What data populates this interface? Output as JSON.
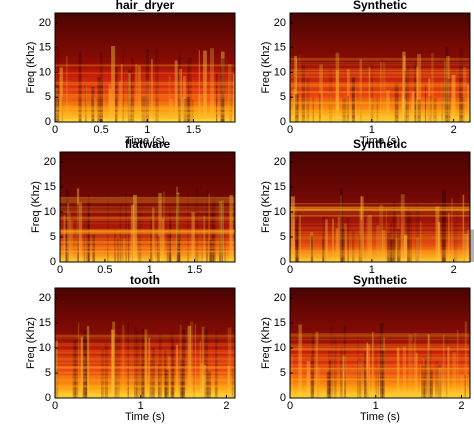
{
  "chart_data": [
    {
      "type": "spectrogram",
      "title": "hair_dryer",
      "xlabel": "Time (s)",
      "ylabel": "Freq (Khz)",
      "xlim": [
        0,
        1.95
      ],
      "xticks": [
        0,
        0.5,
        1,
        1.5
      ],
      "ylim": [
        0,
        22
      ],
      "yticks": [
        0,
        5,
        10,
        15,
        20
      ]
    },
    {
      "type": "spectrogram",
      "title": "Synthetic",
      "xlabel": "Time (s)",
      "ylabel": "Freq (Khz)",
      "xlim": [
        0,
        2.2
      ],
      "xticks": [
        0,
        1,
        2
      ],
      "ylim": [
        0,
        22
      ],
      "yticks": [
        0,
        5,
        10,
        15,
        20
      ]
    },
    {
      "type": "spectrogram",
      "title": "flatware",
      "ylabel": "Freq (Khz)",
      "xlim": [
        0,
        1.95
      ],
      "xticks": [
        0,
        0.5,
        1,
        1.5
      ],
      "ylim": [
        0,
        22
      ],
      "yticks": [
        0,
        5,
        10,
        15,
        20
      ]
    },
    {
      "type": "spectrogram",
      "title": "Synthetic",
      "ylabel": "Freq (Khz)",
      "xlim": [
        0,
        2.2
      ],
      "xticks": [
        0,
        1,
        2
      ],
      "ylim": [
        0,
        22
      ],
      "yticks": [
        0,
        5,
        10,
        15,
        20
      ]
    },
    {
      "type": "spectrogram",
      "title": "tooth",
      "xlabel": "Time (s)",
      "ylabel": "Freq (Khz)",
      "xlim": [
        0,
        2.1
      ],
      "xticks": [
        0,
        1,
        2
      ],
      "ylim": [
        0,
        22
      ],
      "yticks": [
        0,
        5,
        10,
        15,
        20
      ]
    },
    {
      "type": "spectrogram",
      "title": "Synthetic",
      "xlabel": "Time (s)",
      "ylabel": "Freq (Khz)",
      "xlim": [
        0,
        2.1
      ],
      "xticks": [
        0,
        1,
        2
      ],
      "ylim": [
        0,
        22
      ],
      "yticks": [
        0,
        5,
        10,
        15,
        20
      ]
    }
  ]
}
